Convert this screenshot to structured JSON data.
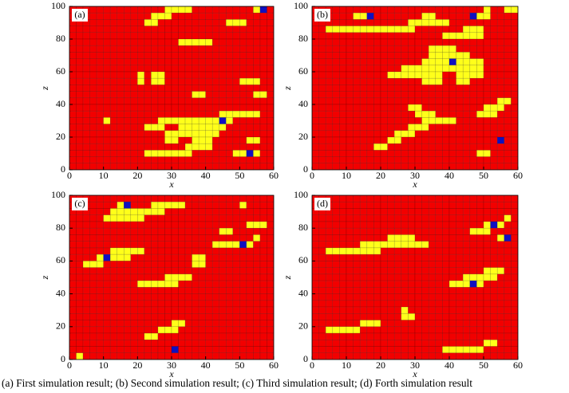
{
  "chart_data": [
    {
      "type": "facies-grid",
      "label": "(a)",
      "xlabel": "x",
      "ylabel": "z",
      "xlim": [
        0,
        60
      ],
      "ylim": [
        0,
        100
      ],
      "xticks": [
        0,
        10,
        20,
        30,
        40,
        50,
        60
      ],
      "yticks": [
        0,
        20,
        40,
        60,
        80,
        100
      ],
      "colors": {
        "R": "#f20000",
        "Y": "#ffff1a",
        "B": "#1010c0"
      },
      "rows": [
        "RRRRRRRRRRRRRRYYYYRRRRRRRRRYBR",
        "RRRRRRRRRRRRYYYRRRRRRRRRRRRRRR",
        "RRRRRRRRRRRYYRRRRRRRRRRYYYRRRR",
        "RRRRRRRRRRRRRRRRRRRRRRRRRRRRRR",
        "RRRRRRRRRRRRRRRRRRRRRRRRRRRRRR",
        "RRRRRRRRRRRRRRRRYYYYYRRRRRRRRR",
        "RRRRRRRRRRRRRRRRRRRRRRRRRRRRRR",
        "RRRRRRRRRRRRRRRRRRRRRRRRRRRRRR",
        "RRRRRRRRRRRRRRRRRRRRRRRRRRRRRR",
        "RRRRRRRRRRRRRRRRRRRRRRRRRRRRRR",
        "RRRRRRRRRRYRYYRRRRRRRRRRRRRRRR",
        "RRRRRRRRRRYRYYRRRRRRRRRRRYYYRR",
        "RRRRRRRRRRRRRRRRRRRRRRRRRRRRRR",
        "RRRRRRRRRRRRRRRRRRYYRRRRRRRYYR",
        "RRRRRRRRRRRRRRRRRRRRRRRRRRRRRR",
        "RRRRRRRRRRRRRRRRRRRRRRRRRRRRRR",
        "RRRRRRRRRRRRRRRRRRRRRRYYYYYYRR",
        "RRRRRYRRRRRRRYYYYYYYYYBYRRRRRR",
        "RRRRRRRRRRRYYYRRYYYYYYYRRRRRRR",
        "RRRRRRRRRRRRRRYYYYYYYYRRRRRRRR",
        "RRRRRRRRRRRRRRYYRRYYYRRRRRYYRR",
        "RRRRRRRRRRRRRRRRRYYYYRRRRRRRRR",
        "RRRRRRRRRRRYYYYYYYRRRRRRYYBYRR",
        "RRRRRRRRRRRRRRRRRRRRRRRRRRRRRR",
        "RRRRRRRRRRRRRRRRRRRRRRRRRRRRRR"
      ]
    },
    {
      "type": "facies-grid",
      "label": "(b)",
      "xlabel": "x",
      "ylabel": "z",
      "xlim": [
        0,
        60
      ],
      "ylim": [
        0,
        100
      ],
      "xticks": [
        0,
        10,
        20,
        30,
        40,
        50,
        60
      ],
      "yticks": [
        0,
        20,
        40,
        60,
        80,
        100
      ],
      "colors": {
        "R": "#f20000",
        "Y": "#ffff1a",
        "B": "#1010c0"
      },
      "rows": [
        "RRRRRRRRRRRRRRRRRRRRRRRRRYRRYY",
        "RRRRRRYYBRRRRRRRYYRRRRRBYYRRRR",
        "RRRRRRRRRRRRRRYYYYYYRRRRRRRRRR",
        "RRYYYYYYYYYYYYYRRRRRRRYYYRRRRR",
        "RRRRRRRRRRRRRRRRRRRYYYYYYRRRRR",
        "RRRRRRRRRRRRRRRRRRRRRRRRRRRRRR",
        "RRRRRRRRRRRRRRRRRYYYYRRRRRRRRR",
        "RRRRRRRRRRRRRRRRRYYYYYYRRRRRRR",
        "RRRRRRRRRRRRRRRRYYYYBYYYYRRRRR",
        "RRRRRRRRRRRRRYYYYYYYYYYYYRRRRR",
        "RRRRRRRRRRRYYYYYYYYRRYYYYRRRRR",
        "RRRRRRRRRRRRRRRRYYYRRYYRRRRRRR",
        "RRRRRRRRRRRRRRRRRRRRRRRRRRRRRR",
        "RRRRRRRRRRRRRRRRRRRRRRRRRRRRRR",
        "RRRRRRRRRRRRRRRRRRRRRRRRRRRYYR",
        "RRRRRRRRRRRRRRYYRRRRRRRRRYYYRR",
        "RRRRRRRRRRRRRRRYYYRRRRRRYYYRRR",
        "RRRRRRRRRRRRRRRRYYYYYRRRRRRRRR",
        "RRRRRRRRRRRRRRYYYRRRRRRRRRRRRR",
        "RRRRRRRRRRRRYYYRRRRRRRRRRRRRRR",
        "RRRRRRRRRRRYYRRRRRRRRRRRRRRBRR",
        "RRRRRRRRRYYRRRRRRRRRRRRRRRRRRR",
        "RRRRRRRRRRRRRRRRRRRRRRRRYYRRRR",
        "RRRRRRRRRRRRRRRRRRRRRRRRRRRRRR",
        "RRRRRRRRRRRRRRRRRRRRRRRRRRRRRR"
      ]
    },
    {
      "type": "facies-grid",
      "label": "(c)",
      "xlabel": "x",
      "ylabel": "z",
      "xlim": [
        0,
        60
      ],
      "ylim": [
        0,
        100
      ],
      "xticks": [
        0,
        10,
        20,
        30,
        40,
        50,
        60
      ],
      "yticks": [
        0,
        20,
        40,
        60,
        80,
        100
      ],
      "colors": {
        "R": "#f20000",
        "Y": "#ffff1a",
        "B": "#1010c0"
      },
      "rows": [
        "RRRRRRRRRRRRRRRRRRRRRRRRRRRRRR",
        "RRRRRRRYBRRRYYYYYRRRRRRRRYRRRR",
        "RRRRRRYYYYYYYYRRRRRRRRRRRRRRRR",
        "RRRRRYYYYYYRRRRRRRRRRRRRRRRRRR",
        "RRRRRRRRRRRRRRRRRRRRRRRRRRYYYR",
        "RRRRRRRRRRRRRRRRRRRRRRYYRRRRRR",
        "RRRRRRRRRRRRRRRRRRRRRRRRRRRYRR",
        "RRRRRRRRRRRRRRRRRRRRRYYYYBYRRR",
        "RRRRRRYYYYYRRRRRRRRRRRRRRRRRRR",
        "RRRRYBYYYRRRRRRRRRYYRRRRRRRRRR",
        "RRYYYRRRRRRRRRRRRRYYRRRRRRRRRR",
        "RRRRRRRRRRRRRRRRRRRRRRRRRRRRRR",
        "RRRRRRRRRRRRRRYYYYRRRRRRRRRRRR",
        "RRRRRRRRRRYYYYYYRRRRRRRRRRRRRR",
        "RRRRRRRRRRRRRRRRRRRRRRRRRRRRRR",
        "RRRRRRRRRRRRRRRRRRRRRRRRRRRRRR",
        "RRRRRRRRRRRRRRRRRRRRRRRRRRRRRR",
        "RRRRRRRRRRRRRRRRRRRRRRRRRRRRRR",
        "RRRRRRRRRRRRRRRRRRRRRRRRRRRRRR",
        "RRRRRRRRRRRRRRRYYRRRRRRRRRRRRR",
        "RRRRRRRRRRRRRYYYRRRRRRRRRRRRRR",
        "RRRRRRRRRRRYYRRRRRRRRRRRRRRRRR",
        "RRRRRRRRRRRRRRRRRRRRRRRRRRRRRR",
        "RRRRRRRRRRRRRRRBRRRRRRRRRRRRRR",
        "RYRRRRRRRRRRRRRRRRRRRRRRRRRRRR"
      ]
    },
    {
      "type": "facies-grid",
      "label": "(d)",
      "xlabel": "x",
      "ylabel": "z",
      "xlim": [
        0,
        60
      ],
      "ylim": [
        0,
        100
      ],
      "xticks": [
        0,
        10,
        20,
        30,
        40,
        50,
        60
      ],
      "yticks": [
        0,
        20,
        40,
        60,
        80,
        100
      ],
      "colors": {
        "R": "#f20000",
        "Y": "#ffff1a",
        "B": "#1010c0"
      },
      "rows": [
        "RRRRRRRRRRRRRRRRRRRRRRRRRRRRRR",
        "RRRRRRRRRRRRRRRRRRRRRRRRRRRRRR",
        "RRRRRRRRRRRRRRRRRRRRRRRRRRRRRR",
        "RRRRRRRRRRRRRRRRRRRRRRRRRRRRYR",
        "RRRRRRRRRRRRRRRRRRRRRRRRRYBYRR",
        "RRRRRRRRRRRRRRRRRRRRRRRYYYRRRR",
        "RRRRRRRRRRRYYYYRRRRRRRRRRRRYBR",
        "RRRRRRRYYYYYYYYYYRRRRRRRRRRRRR",
        "RRYYYYYYYYRRRRRRRRRRRRRRRRRRRR",
        "RRRRRRRRRRRRRRRRRRRRRRRRRRRRRR",
        "RRRRRRRRRRRRRRRRRRRRRRRRRRRRRR",
        "RRRRRRRRRRRRRRRRRRRRRRRRRYYYRR",
        "RRRRRRRRRRRRRRRRRRRRRRYYYYYRRR",
        "RRRRRRRRRRRRRRRRRRRRYYYBYRRRRR",
        "RRRRRRRRRRRRRRRRRRRRRRRRRRRRRR",
        "RRRRRRRRRRRRRRRRRRRRRRRRRRRRRR",
        "RRRRRRRRRRRRRRRRRRRRRRRRRRRRRR",
        "RRRRRRRRRRRRRYRRRRRRRRRRRRRRRR",
        "RRRRRRRRRRRRRYYRRRRRRRRRRRRRRR",
        "RRRRRRRYYYRRRRRRRRRRRRRRRRRRRR",
        "RRYYYYYRRRRRRRRRRRRRRRRRRRRRRR",
        "RRRRRRRRRRRRRRRRRRRRRRRRRRRRRR",
        "RRRRRRRRRRRRRRRRRRRRRRRRRYYRRR",
        "RRRRRRRRRRRRRRRRRRRYYYYYYRRRRR",
        "RRRRRRRRRRRRRRRRRRRRRRRRRRRRRR"
      ]
    }
  ],
  "caption": "(a) First simulation result; (b) Second simulation result; (c) Third simulation result; (d) Forth simulation result"
}
